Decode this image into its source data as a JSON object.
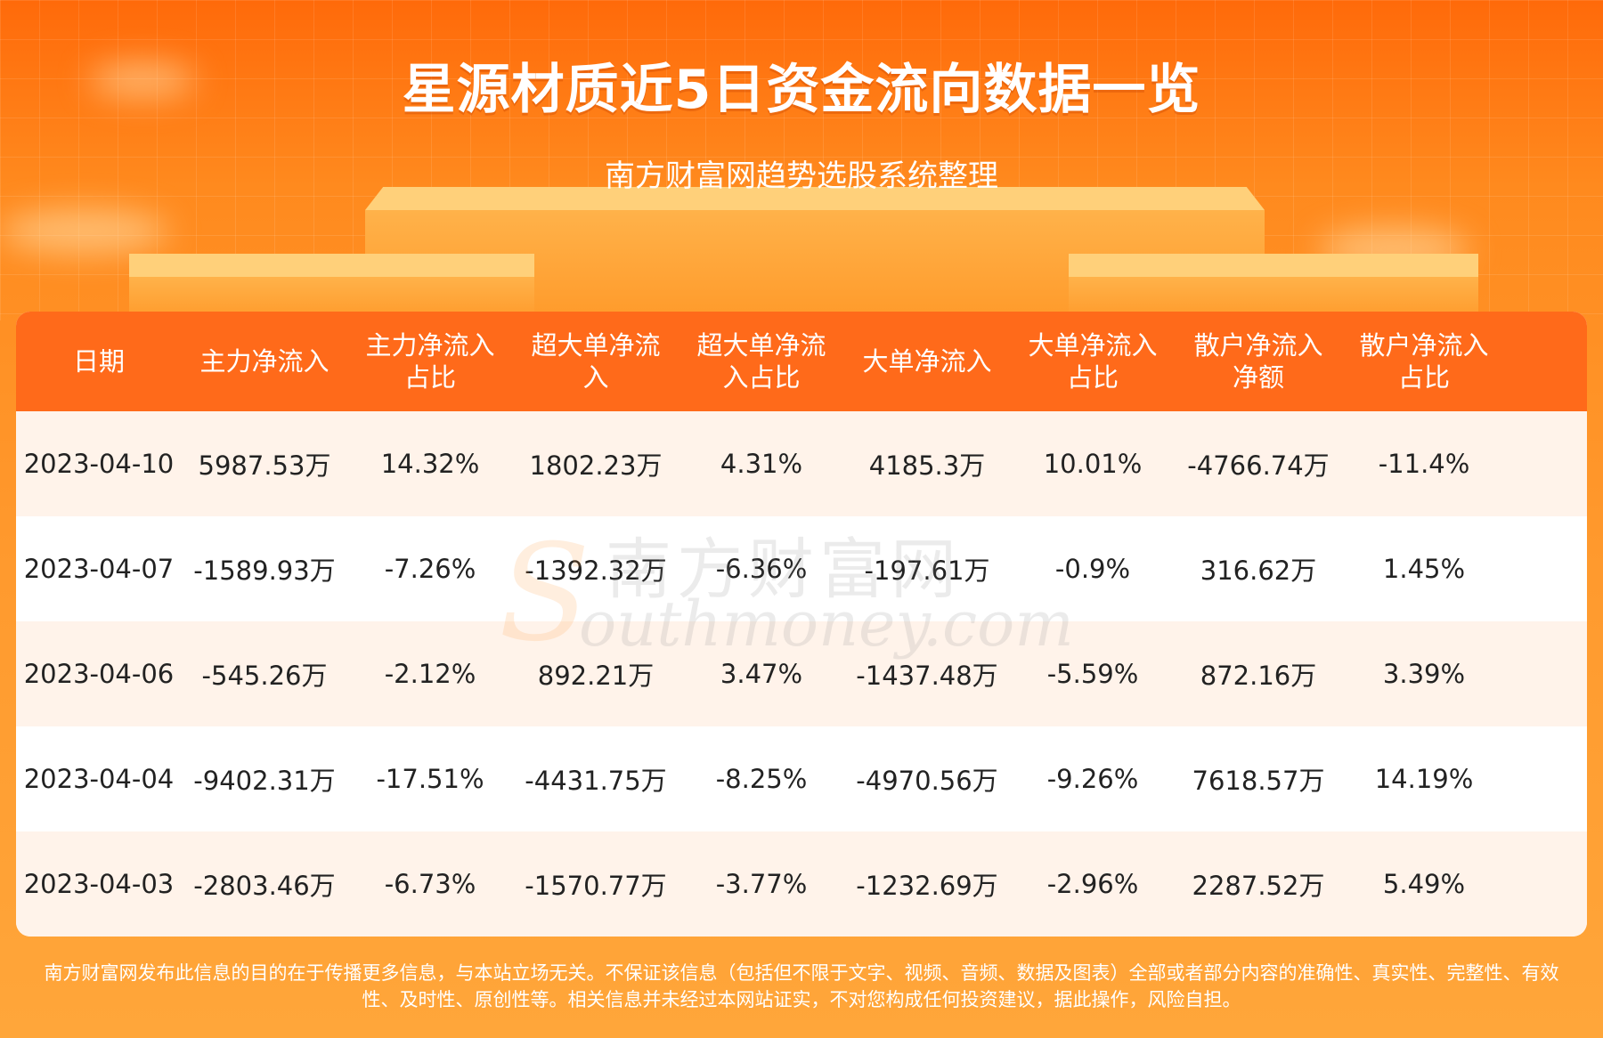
{
  "header": {
    "title": "星源材质近5日资金流向数据一览",
    "subtitle": "南方财富网趋势选股系统整理"
  },
  "table": {
    "columns": [
      "日期",
      "主力净流入",
      "主力净流入\n占比",
      "超大单净流\n入",
      "超大单净流\n入占比",
      "大单净流入",
      "大单净流入\n占比",
      "散户净流入\n净额",
      "散户净流入\n占比"
    ],
    "rows": [
      [
        "2023-04-10",
        "5987.53万",
        "14.32%",
        "1802.23万",
        "4.31%",
        "4185.3万",
        "10.01%",
        "-4766.74万",
        "-11.4%"
      ],
      [
        "2023-04-07",
        "-1589.93万",
        "-7.26%",
        "-1392.32万",
        "-6.36%",
        "-197.61万",
        "-0.9%",
        "316.62万",
        "1.45%"
      ],
      [
        "2023-04-06",
        "-545.26万",
        "-2.12%",
        "892.21万",
        "3.47%",
        "-1437.48万",
        "-5.59%",
        "872.16万",
        "3.39%"
      ],
      [
        "2023-04-04",
        "-9402.31万",
        "-17.51%",
        "-4431.75万",
        "-8.25%",
        "-4970.56万",
        "-9.26%",
        "7618.57万",
        "14.19%"
      ],
      [
        "2023-04-03",
        "-2803.46万",
        "-6.73%",
        "-1570.77万",
        "-3.77%",
        "-1232.69万",
        "-2.96%",
        "2287.52万",
        "5.49%"
      ]
    ]
  },
  "watermark": {
    "cn": "南方财富网",
    "en": "outhmoney.com",
    "s": "S"
  },
  "footer": {
    "disclaimer_line1": "南方财富网发布此信息的目的在于传播更多信息，与本站立场无关。不保证该信息（包括但不限于文字、视频、音频、数据及图表）全部或者部分内容的准确性、真实性、完整性、有效",
    "disclaimer_line2": "性、及时性、原创性等。相关信息并未经过本网站证实，不对您构成任何投资建议，据此操作，风险自担。"
  },
  "colors": {
    "header_orange": "#ff6a1a",
    "row_alt": "#fff3ea"
  }
}
